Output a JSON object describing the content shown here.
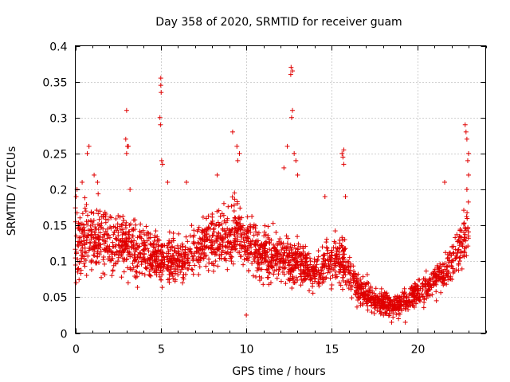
{
  "chart_data": {
    "type": "scatter",
    "title": "Day 358 of 2020, SRMTID for receiver guam",
    "xlabel": "GPS time / hours",
    "ylabel": "SRMTID / TECUs",
    "xlim": [
      0,
      24
    ],
    "ylim": [
      0,
      0.4
    ],
    "xticks": [
      0,
      5,
      10,
      15,
      20
    ],
    "xtick_labels": [
      "0",
      "5",
      "10",
      "15",
      "20"
    ],
    "yticks": [
      0,
      0.05,
      0.1,
      0.15,
      0.2,
      0.25,
      0.3,
      0.35,
      0.4
    ],
    "ytick_labels": [
      "0",
      "0.05",
      "0.1",
      "0.15",
      "0.2",
      "0.25",
      "0.3",
      "0.35",
      "0.4"
    ],
    "grid": true,
    "marker": "+",
    "color": "#e00000",
    "x_range_of_data": [
      0,
      23.0
    ],
    "trend": [
      {
        "x": 0,
        "y": 0.13,
        "spread": 0.05
      },
      {
        "x": 2,
        "y": 0.13,
        "spread": 0.04
      },
      {
        "x": 4,
        "y": 0.11,
        "spread": 0.035
      },
      {
        "x": 6,
        "y": 0.1,
        "spread": 0.03
      },
      {
        "x": 8,
        "y": 0.13,
        "spread": 0.035
      },
      {
        "x": 9.5,
        "y": 0.14,
        "spread": 0.04
      },
      {
        "x": 11,
        "y": 0.11,
        "spread": 0.035
      },
      {
        "x": 13,
        "y": 0.1,
        "spread": 0.03
      },
      {
        "x": 14,
        "y": 0.08,
        "spread": 0.025
      },
      {
        "x": 15.5,
        "y": 0.11,
        "spread": 0.04
      },
      {
        "x": 16.5,
        "y": 0.06,
        "spread": 0.02
      },
      {
        "x": 18.5,
        "y": 0.035,
        "spread": 0.015
      },
      {
        "x": 20,
        "y": 0.055,
        "spread": 0.02
      },
      {
        "x": 21.5,
        "y": 0.08,
        "spread": 0.025
      },
      {
        "x": 23,
        "y": 0.14,
        "spread": 0.04
      }
    ],
    "highlights": [
      {
        "x": 0.05,
        "y": 0.19
      },
      {
        "x": 0.1,
        "y": 0.2
      },
      {
        "x": 0.4,
        "y": 0.21
      },
      {
        "x": 0.7,
        "y": 0.25
      },
      {
        "x": 0.8,
        "y": 0.26
      },
      {
        "x": 1.1,
        "y": 0.22
      },
      {
        "x": 1.3,
        "y": 0.21
      },
      {
        "x": 3.0,
        "y": 0.31
      },
      {
        "x": 2.95,
        "y": 0.27
      },
      {
        "x": 3.05,
        "y": 0.26
      },
      {
        "x": 3.0,
        "y": 0.25
      },
      {
        "x": 3.1,
        "y": 0.26
      },
      {
        "x": 3.2,
        "y": 0.2
      },
      {
        "x": 4.95,
        "y": 0.3
      },
      {
        "x": 5.0,
        "y": 0.355
      },
      {
        "x": 5.0,
        "y": 0.345
      },
      {
        "x": 5.02,
        "y": 0.335
      },
      {
        "x": 4.98,
        "y": 0.29
      },
      {
        "x": 5.05,
        "y": 0.24
      },
      {
        "x": 5.1,
        "y": 0.235
      },
      {
        "x": 5.4,
        "y": 0.21
      },
      {
        "x": 6.5,
        "y": 0.21
      },
      {
        "x": 8.3,
        "y": 0.22
      },
      {
        "x": 9.2,
        "y": 0.28
      },
      {
        "x": 9.6,
        "y": 0.25
      },
      {
        "x": 9.5,
        "y": 0.24
      },
      {
        "x": 9.45,
        "y": 0.26
      },
      {
        "x": 12.2,
        "y": 0.23
      },
      {
        "x": 12.4,
        "y": 0.26
      },
      {
        "x": 12.6,
        "y": 0.36
      },
      {
        "x": 12.62,
        "y": 0.37
      },
      {
        "x": 12.7,
        "y": 0.365
      },
      {
        "x": 12.65,
        "y": 0.3
      },
      {
        "x": 12.7,
        "y": 0.31
      },
      {
        "x": 12.8,
        "y": 0.25
      },
      {
        "x": 12.9,
        "y": 0.24
      },
      {
        "x": 13.0,
        "y": 0.22
      },
      {
        "x": 14.6,
        "y": 0.19
      },
      {
        "x": 15.6,
        "y": 0.25
      },
      {
        "x": 15.65,
        "y": 0.245
      },
      {
        "x": 15.7,
        "y": 0.235
      },
      {
        "x": 15.7,
        "y": 0.255
      },
      {
        "x": 15.8,
        "y": 0.19
      },
      {
        "x": 21.6,
        "y": 0.21
      },
      {
        "x": 22.8,
        "y": 0.29
      },
      {
        "x": 22.85,
        "y": 0.28
      },
      {
        "x": 22.9,
        "y": 0.27
      },
      {
        "x": 23.0,
        "y": 0.25
      },
      {
        "x": 22.95,
        "y": 0.24
      },
      {
        "x": 23.0,
        "y": 0.22
      },
      {
        "x": 22.9,
        "y": 0.2
      },
      {
        "x": 18.5,
        "y": 0.015
      },
      {
        "x": 18.9,
        "y": 0.02
      },
      {
        "x": 19.3,
        "y": 0.015
      },
      {
        "x": 10.0,
        "y": 0.025
      },
      {
        "x": 0.05,
        "y": 0.07
      }
    ]
  }
}
